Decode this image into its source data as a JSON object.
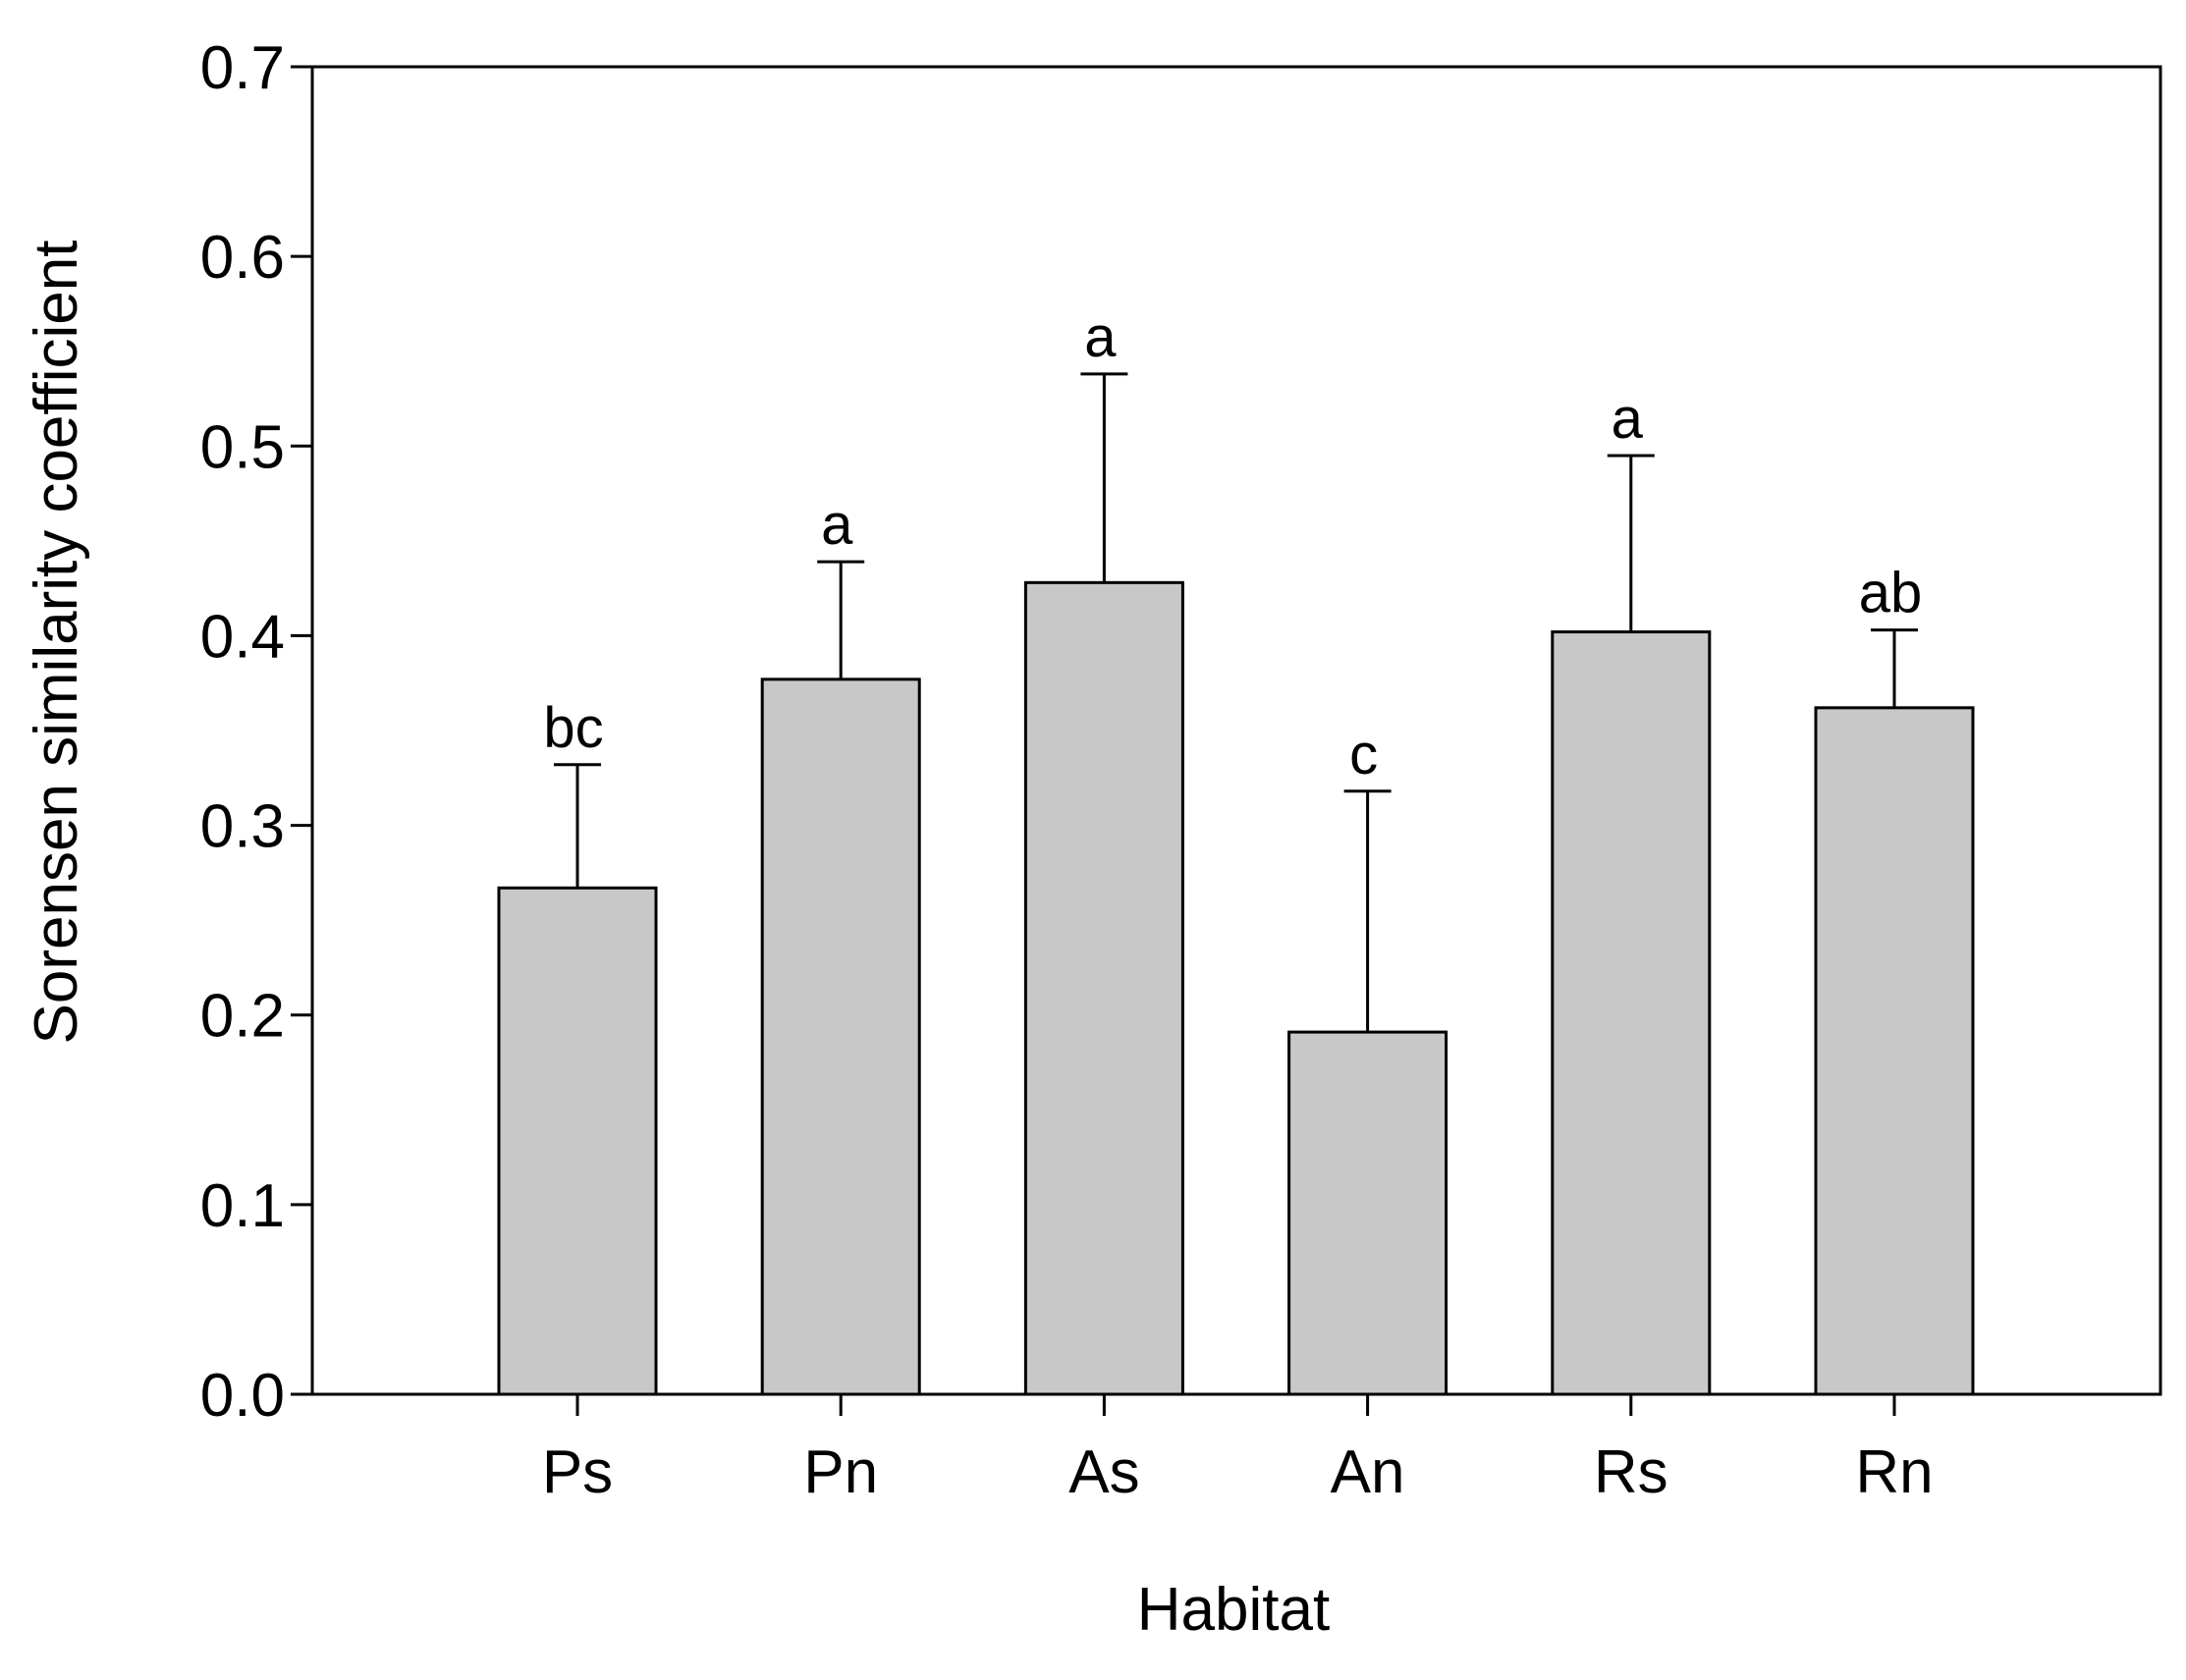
{
  "chart_data": {
    "type": "bar",
    "title": "",
    "xlabel": "Habitat",
    "ylabel": "Sorensen similarity coefficient",
    "categories": [
      "Ps",
      "Pn",
      "As",
      "An",
      "Rs",
      "Rn"
    ],
    "values": [
      0.267,
      0.377,
      0.428,
      0.191,
      0.402,
      0.362
    ],
    "error_upper": [
      0.065,
      0.062,
      0.11,
      0.127,
      0.093,
      0.041
    ],
    "significance_letters": [
      "bc",
      "a",
      "a",
      "c",
      "a",
      "ab"
    ],
    "ylim": [
      0.0,
      0.7
    ],
    "yticks": [
      "0.0",
      "0.1",
      "0.2",
      "0.3",
      "0.4",
      "0.5",
      "0.6",
      "0.7"
    ],
    "grid": false,
    "legend": "none",
    "colors": {
      "bar_fill": "#c8c8c8",
      "bar_stroke": "#000000",
      "axis": "#000000"
    }
  }
}
